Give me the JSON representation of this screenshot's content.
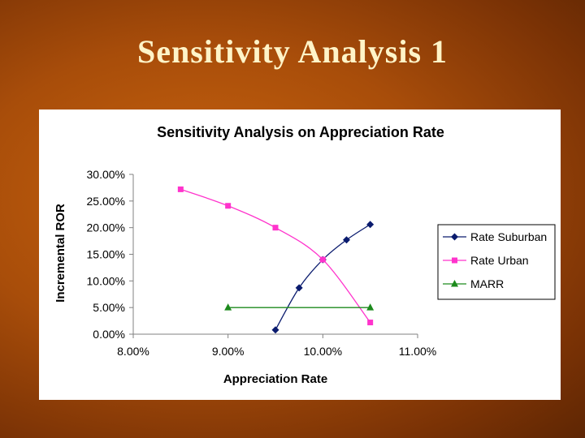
{
  "slide": {
    "title": "Sensitivity Analysis 1"
  },
  "colors": {
    "suburban": "#0a1b6e",
    "urban": "#ff33cc",
    "marr": "#1c8a1c"
  },
  "chart_data": {
    "type": "scatter",
    "title": "Sensitivity Analysis on Appreciation Rate",
    "xlabel": "Appreciation Rate",
    "ylabel": "Incremental ROR",
    "xlim": [
      8,
      11
    ],
    "ylim": [
      0,
      30
    ],
    "x_ticks": [
      8,
      9,
      10,
      11
    ],
    "y_ticks": [
      0,
      5,
      10,
      15,
      20,
      25,
      30
    ],
    "x_tick_labels": [
      "8.00%",
      "9.00%",
      "10.00%",
      "11.00%"
    ],
    "y_tick_labels": [
      "0.00%",
      "5.00%",
      "10.00%",
      "15.00%",
      "20.00%",
      "25.00%",
      "30.00%"
    ],
    "legend_position": "right",
    "series": [
      {
        "name": "Rate Suburban",
        "marker": "diamond",
        "colorKey": "suburban",
        "x": [
          9.5,
          9.75,
          10.0,
          10.25,
          10.5
        ],
        "y": [
          0.8,
          8.7,
          14.0,
          17.7,
          20.6
        ]
      },
      {
        "name": "Rate Urban",
        "marker": "square",
        "colorKey": "urban",
        "x": [
          8.5,
          9.0,
          9.5,
          10.0,
          10.5
        ],
        "y": [
          27.2,
          24.1,
          20.0,
          14.0,
          2.2
        ]
      },
      {
        "name": "MARR",
        "marker": "triangle",
        "colorKey": "marr",
        "x": [
          9.0,
          10.5
        ],
        "y": [
          5.0,
          5.0
        ]
      }
    ]
  }
}
